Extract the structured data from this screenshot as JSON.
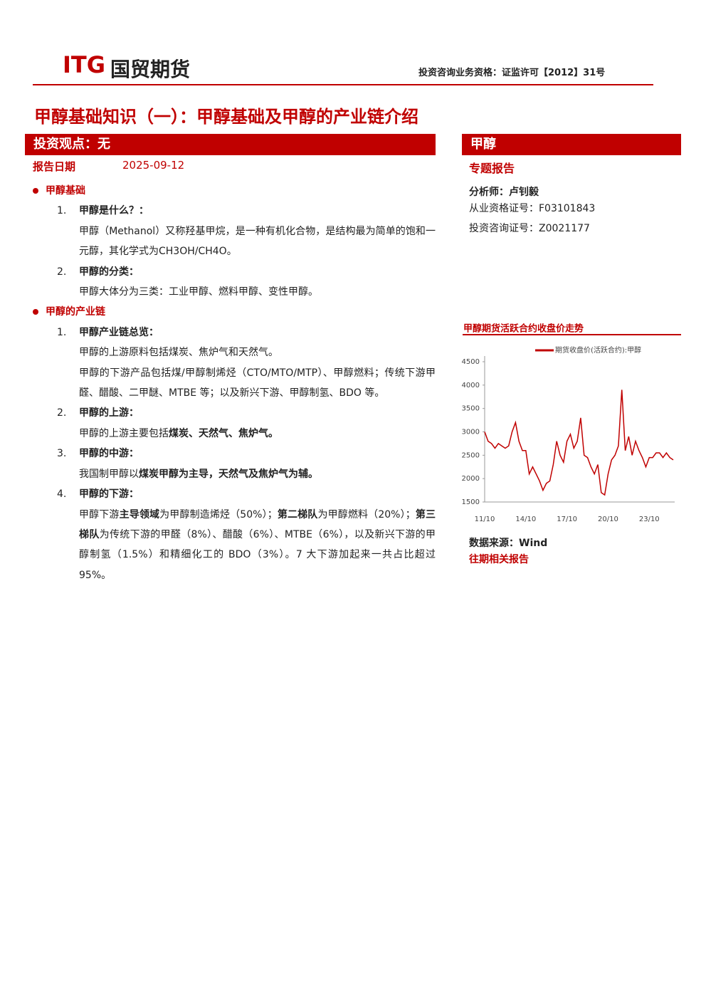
{
  "header": {
    "logo_latin": "ITG",
    "logo_cn": "国贸期货",
    "qualification": "投资咨询业务资格：证监许可【2012】31号"
  },
  "title": "甲醇基础知识（一）：甲醇基础及甲醇的产业链介绍",
  "left_banner": "投资观点：无",
  "report_date_label": "报告日期",
  "report_date": "2025-09-12",
  "sections": [
    {
      "heading": "甲醇基础",
      "items": [
        {
          "num": "1.",
          "title": "甲醇是什么？：",
          "paragraphs": [
            [
              {
                "t": "甲醇（Methanol）又称羟基甲烷，是一种有机化合物，是结构最为简单的饱和一元醇，其化学式为CH3OH/CH4O。",
                "b": false
              }
            ]
          ]
        },
        {
          "num": "2.",
          "title": "甲醇的分类：",
          "paragraphs": [
            [
              {
                "t": "甲醇大体分为三类：工业甲醇、燃料甲醇、变性甲醇。",
                "b": false
              }
            ]
          ]
        }
      ]
    },
    {
      "heading": "甲醇的产业链",
      "items": [
        {
          "num": "1.",
          "title": "甲醇产业链总览：",
          "paragraphs": [
            [
              {
                "t": "甲醇的上游原料包括煤炭、焦炉气和天然气。",
                "b": false
              }
            ],
            [
              {
                "t": "甲醇的下游产品包括煤/甲醇制烯烃（CTO/MTO/MTP）、甲醇燃料；传统下游甲醛、醋酸、二甲醚、MTBE 等；以及新兴下游、甲醇制氢、BDO 等。",
                "b": false
              }
            ]
          ]
        },
        {
          "num": "2.",
          "title": "甲醇的上游：",
          "paragraphs": [
            [
              {
                "t": "甲醇的上游主要包括",
                "b": false
              },
              {
                "t": "煤炭、天然气、焦炉气。",
                "b": true
              }
            ]
          ]
        },
        {
          "num": "3.",
          "title": "甲醇的中游：",
          "paragraphs": [
            [
              {
                "t": "我国制甲醇以",
                "b": false
              },
              {
                "t": "煤炭甲醇为主导，天然气及焦炉气为辅。",
                "b": true
              }
            ]
          ]
        },
        {
          "num": "4.",
          "title": "甲醇的下游：",
          "paragraphs": [
            [
              {
                "t": "甲醇下游",
                "b": false
              },
              {
                "t": "主导领域",
                "b": true
              },
              {
                "t": "为甲醇制造烯烃（50%）；",
                "b": false
              },
              {
                "t": "第二梯队",
                "b": true
              },
              {
                "t": "为甲醇燃料（20%）；",
                "b": false
              },
              {
                "t": "第三梯队",
                "b": true
              },
              {
                "t": "为传统下游的甲醛（8%）、醋酸（6%）、MTBE（6%），以及新兴下游的甲醇制氢（1.5%）和精细化工的 BDO（3%）。7 大下游加起来一共占比超过 95%。",
                "b": false
              }
            ]
          ]
        }
      ]
    }
  ],
  "right": {
    "banner": "甲醇",
    "report_type": "专题报告",
    "analyst": "分析师：卢钊毅",
    "cert1": "从业资格证号：F03101843",
    "cert2": "投资咨询证号：Z0021177",
    "source": "数据来源：Wind",
    "related": "往期相关报告"
  },
  "chart_data": {
    "type": "line",
    "title": "甲醇期货活跃合约收盘价走势",
    "x": [
      "11/10",
      null,
      null,
      null,
      null,
      null,
      null,
      null,
      null,
      null,
      null,
      null,
      "14/10",
      null,
      null,
      null,
      null,
      null,
      null,
      null,
      null,
      null,
      null,
      null,
      "17/10",
      null,
      null,
      null,
      null,
      null,
      null,
      null,
      null,
      null,
      null,
      null,
      "20/10",
      null,
      null,
      null,
      null,
      null,
      null,
      null,
      null,
      null,
      null,
      null,
      "23/10",
      null,
      null,
      null,
      null,
      null,
      null,
      null
    ],
    "series": [
      {
        "name": "期货收盘价(活跃合约):甲醇",
        "color": "#c00000",
        "values": [
          3000,
          2800,
          2750,
          2650,
          2750,
          2700,
          2650,
          2700,
          3000,
          3200,
          2800,
          2600,
          2600,
          2100,
          2250,
          2100,
          1950,
          1750,
          1900,
          1950,
          2300,
          2800,
          2500,
          2350,
          2800,
          2950,
          2650,
          2800,
          3300,
          2500,
          2450,
          2250,
          2100,
          2300,
          1700,
          1650,
          2100,
          2400,
          2500,
          2700,
          3900,
          2600,
          2900,
          2500,
          2800,
          2600,
          2450,
          2250,
          2450,
          2450,
          2550,
          2550,
          2450,
          2550,
          2450,
          2400
        ]
      }
    ],
    "ylim": [
      1500,
      4500
    ],
    "yticks": [
      1500,
      2000,
      2500,
      3000,
      3500,
      4000,
      4500
    ]
  }
}
